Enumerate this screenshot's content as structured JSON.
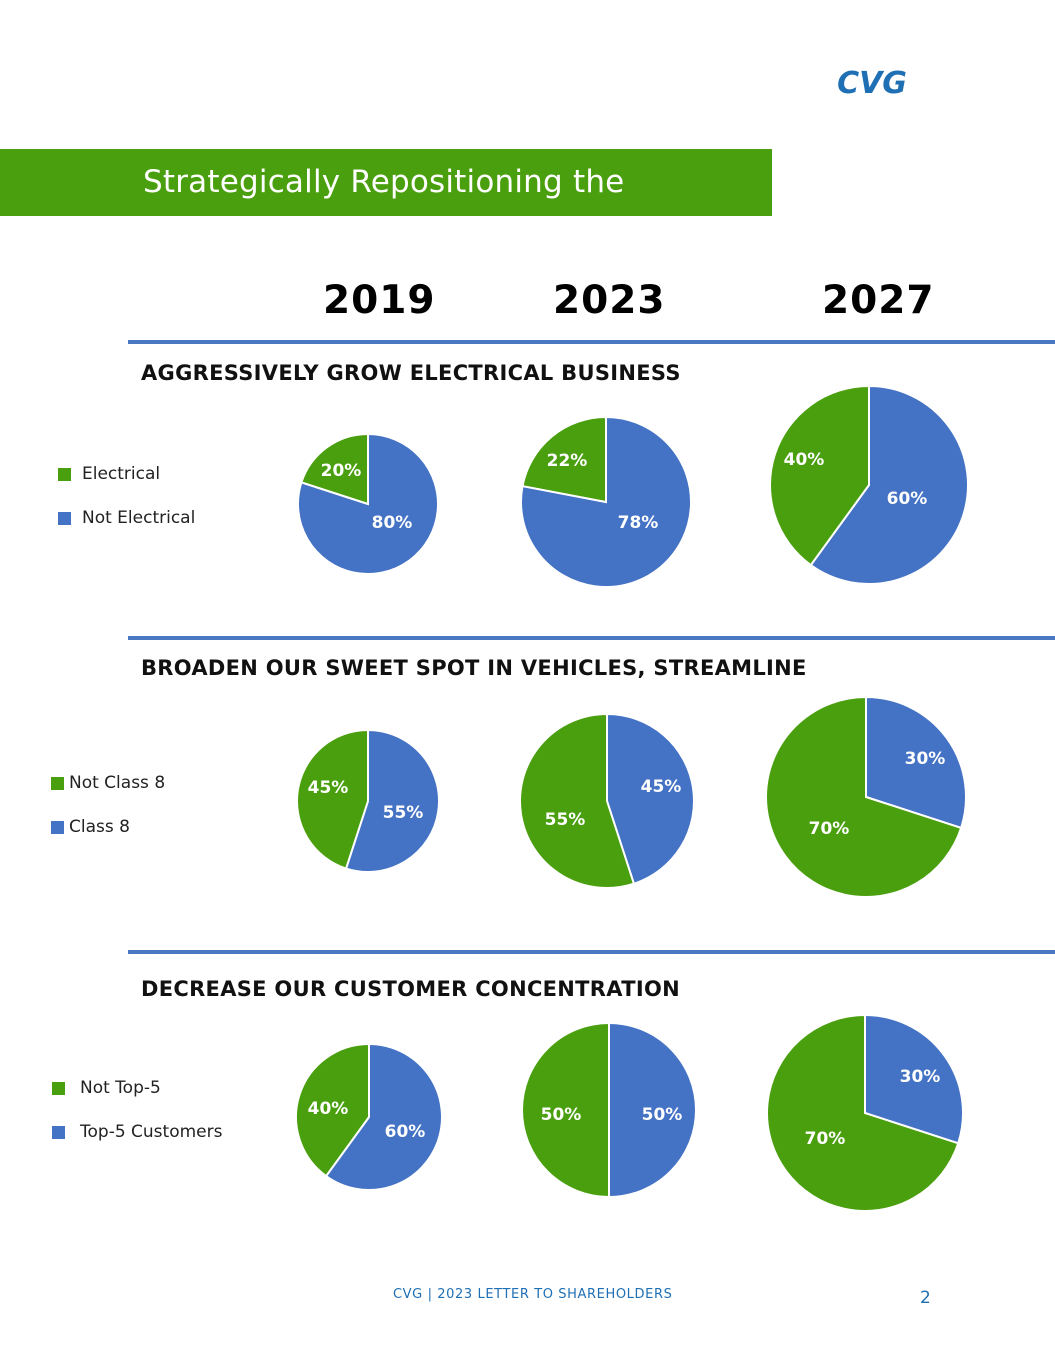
{
  "logo": {
    "text": "CVG",
    "color": "#1f6fb4"
  },
  "banner": {
    "title": "Strategically Repositioning the Business",
    "color": "#4a9f0e"
  },
  "years": [
    "2019",
    "2023",
    "2027"
  ],
  "colors": {
    "green": "#4a9f0e",
    "blue": "#4472c4",
    "rule": "#4a78c2"
  },
  "sections": [
    {
      "title": "AGGRESSIVELY GROW ELECTRICAL BUSINESS",
      "legend": [
        {
          "label": "Electrical",
          "color": "#4a9f0e"
        },
        {
          "label": "Not Electrical",
          "color": "#4472c4"
        }
      ]
    },
    {
      "title": "BROADEN OUR SWEET SPOT IN VEHICLES, STREAMLINE",
      "legend": [
        {
          "label": "Not Class 8",
          "color": "#4a9f0e"
        },
        {
          "label": "Class 8",
          "color": "#4472c4"
        }
      ]
    },
    {
      "title": "DECREASE OUR CUSTOMER CONCENTRATION",
      "legend": [
        {
          "label": "Not Top-5",
          "color": "#4a9f0e"
        },
        {
          "label": "Top-5 Customers",
          "color": "#4472c4"
        }
      ]
    }
  ],
  "chart_data": [
    {
      "type": "pie",
      "title": "AGGRESSIVELY GROW ELECTRICAL BUSINESS",
      "year": "2019",
      "slices": [
        {
          "label": "Not Electrical",
          "value": 80,
          "text": "80%"
        },
        {
          "label": "Electrical",
          "value": 20,
          "text": "20%"
        }
      ]
    },
    {
      "type": "pie",
      "title": "AGGRESSIVELY GROW ELECTRICAL BUSINESS",
      "year": "2023",
      "slices": [
        {
          "label": "Not Electrical",
          "value": 78,
          "text": "78%"
        },
        {
          "label": "Electrical",
          "value": 22,
          "text": "22%"
        }
      ]
    },
    {
      "type": "pie",
      "title": "AGGRESSIVELY GROW ELECTRICAL BUSINESS",
      "year": "2027",
      "slices": [
        {
          "label": "Not Electrical",
          "value": 60,
          "text": "60%"
        },
        {
          "label": "Electrical",
          "value": 40,
          "text": "40%"
        }
      ]
    },
    {
      "type": "pie",
      "title": "BROADEN OUR SWEET SPOT IN VEHICLES, STREAMLINE",
      "year": "2019",
      "slices": [
        {
          "label": "Class 8",
          "value": 55,
          "text": "55%"
        },
        {
          "label": "Not Class 8",
          "value": 45,
          "text": "45%"
        }
      ]
    },
    {
      "type": "pie",
      "title": "BROADEN OUR SWEET SPOT IN VEHICLES, STREAMLINE",
      "year": "2023",
      "slices": [
        {
          "label": "Class 8",
          "value": 45,
          "text": "45%"
        },
        {
          "label": "Not Class 8",
          "value": 55,
          "text": "55%"
        }
      ]
    },
    {
      "type": "pie",
      "title": "BROADEN OUR SWEET SPOT IN VEHICLES, STREAMLINE",
      "year": "2027",
      "slices": [
        {
          "label": "Class 8",
          "value": 30,
          "text": "30%"
        },
        {
          "label": "Not Class 8",
          "value": 70,
          "text": "70%"
        }
      ]
    },
    {
      "type": "pie",
      "title": "DECREASE OUR CUSTOMER CONCENTRATION",
      "year": "2019",
      "slices": [
        {
          "label": "Top-5 Customers",
          "value": 60,
          "text": "60%"
        },
        {
          "label": "Not Top-5",
          "value": 40,
          "text": "40%"
        }
      ]
    },
    {
      "type": "pie",
      "title": "DECREASE OUR CUSTOMER CONCENTRATION",
      "year": "2023",
      "slices": [
        {
          "label": "Top-5 Customers",
          "value": 50,
          "text": "50%"
        },
        {
          "label": "Not Top-5",
          "value": 50,
          "text": "50%"
        }
      ]
    },
    {
      "type": "pie",
      "title": "DECREASE OUR CUSTOMER CONCENTRATION",
      "year": "2027",
      "slices": [
        {
          "label": "Top-5 Customers",
          "value": 30,
          "text": "30%"
        },
        {
          "label": "Not Top-5",
          "value": 70,
          "text": "70%"
        }
      ]
    }
  ],
  "footer": {
    "text": "CVG | 2023 LETTER TO SHAREHOLDERS",
    "page": "2"
  }
}
